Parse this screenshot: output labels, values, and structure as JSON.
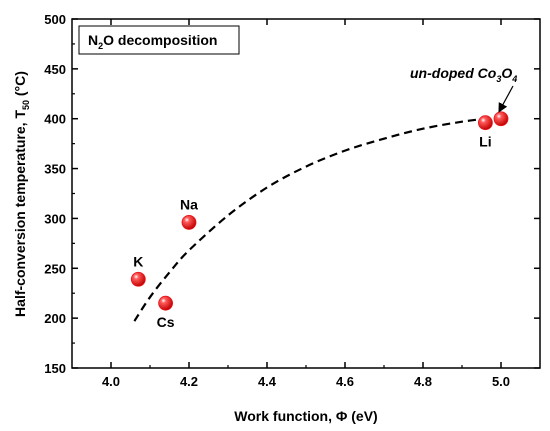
{
  "chart_data": {
    "type": "scatter",
    "title": "",
    "legend_box": {
      "prefix": "N",
      "sub": "2",
      "suffix": "O decomposition",
      "placement": "top-left"
    },
    "xlabel": "Work function, Φ (eV)",
    "ylabel": {
      "main": "Half-conversion temperature, T",
      "sub": "50",
      "unit": " (°C)"
    },
    "xlim": [
      3.9,
      5.1
    ],
    "ylim": [
      150,
      500
    ],
    "xticks": [
      4.0,
      4.2,
      4.4,
      4.6,
      4.8,
      5.0
    ],
    "xtick_labels": [
      "4.0",
      "4.2",
      "4.4",
      "4.6",
      "4.8",
      "5.0"
    ],
    "yticks": [
      150,
      200,
      250,
      300,
      350,
      400,
      450,
      500
    ],
    "ytick_labels": [
      "150",
      "200",
      "250",
      "300",
      "350",
      "400",
      "450",
      "500"
    ],
    "points": [
      {
        "label": "K",
        "x": 4.07,
        "y": 239,
        "label_pos": "above"
      },
      {
        "label": "Na",
        "x": 4.2,
        "y": 296,
        "label_pos": "above"
      },
      {
        "label": "Cs",
        "x": 4.14,
        "y": 215,
        "label_pos": "below"
      },
      {
        "label": "Li",
        "x": 4.96,
        "y": 396,
        "label_pos": "below"
      },
      {
        "label": "",
        "x": 5.0,
        "y": 400,
        "label_pos": "none"
      }
    ],
    "annotation": {
      "prefix": "un-doped Co",
      "sub1": "3",
      "mid": "O",
      "sub2": "4",
      "target_x": 5.0,
      "target_y": 400
    },
    "fit_curve": {
      "style": "dashed",
      "points": [
        [
          4.06,
          197
        ],
        [
          4.1,
          221
        ],
        [
          4.15,
          246
        ],
        [
          4.2,
          268
        ],
        [
          4.3,
          303
        ],
        [
          4.4,
          331
        ],
        [
          4.5,
          352
        ],
        [
          4.6,
          368
        ],
        [
          4.7,
          380
        ],
        [
          4.8,
          390
        ],
        [
          4.9,
          397
        ],
        [
          4.98,
          401
        ]
      ]
    },
    "marker_color": "#e8141c",
    "grid": false
  }
}
